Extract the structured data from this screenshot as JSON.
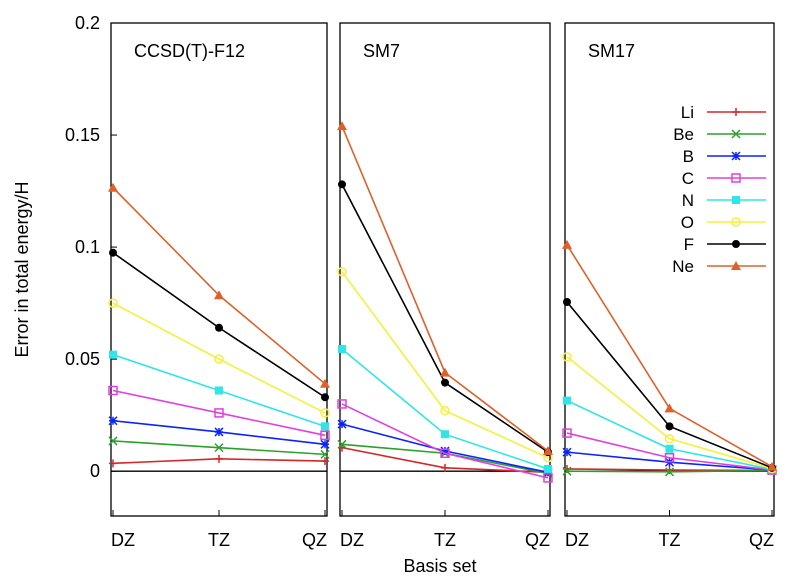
{
  "chart_data": {
    "type": "line",
    "ylabel": "Error in total energy/H",
    "xlabel": "Basis set",
    "ylim": [
      -0.02,
      0.2
    ],
    "yticks": [
      0,
      0.05,
      0.1,
      0.15,
      0.2
    ],
    "ytick_labels": [
      "0",
      "0.05",
      "0.1",
      "0.15",
      "0.2"
    ],
    "categories": [
      "DZ",
      "TZ",
      "QZ"
    ],
    "legend_position": "right, inside third panel",
    "zero_line": true,
    "series_styles": [
      {
        "name": "Li",
        "color": "#d62728",
        "marker": "plus"
      },
      {
        "name": "Be",
        "color": "#2ca02c",
        "marker": "cross"
      },
      {
        "name": "B",
        "color": "#0b24fb",
        "marker": "star"
      },
      {
        "name": "C",
        "color": "#e040e0",
        "marker": "open-square"
      },
      {
        "name": "N",
        "color": "#2ee6e6",
        "marker": "filled-square"
      },
      {
        "name": "O",
        "color": "#f5f03a",
        "marker": "open-circle"
      },
      {
        "name": "F",
        "color": "#000000",
        "marker": "filled-circle"
      },
      {
        "name": "Ne",
        "color": "#e0602a",
        "marker": "filled-triangle"
      }
    ],
    "panels": [
      {
        "title": "CCSD(T)-F12",
        "series": [
          {
            "name": "Li",
            "values": [
              0.0035,
              0.0055,
              0.0045
            ]
          },
          {
            "name": "Be",
            "values": [
              0.0135,
              0.0105,
              0.0075
            ]
          },
          {
            "name": "B",
            "values": [
              0.0225,
              0.0175,
              0.012
            ]
          },
          {
            "name": "C",
            "values": [
              0.036,
              0.026,
              0.016
            ]
          },
          {
            "name": "N",
            "values": [
              0.052,
              0.036,
              0.02
            ]
          },
          {
            "name": "O",
            "values": [
              0.075,
              0.05,
              0.026
            ]
          },
          {
            "name": "F",
            "values": [
              0.0975,
              0.064,
              0.033
            ]
          },
          {
            "name": "Ne",
            "values": [
              0.1265,
              0.0785,
              0.039
            ]
          }
        ]
      },
      {
        "title": "SM7",
        "series": [
          {
            "name": "Li",
            "values": [
              0.0105,
              0.0015,
              -0.0005
            ]
          },
          {
            "name": "Be",
            "values": [
              0.012,
              0.008,
              -0.001
            ]
          },
          {
            "name": "B",
            "values": [
              0.021,
              0.009,
              -0.0005
            ]
          },
          {
            "name": "C",
            "values": [
              0.03,
              0.008,
              -0.003
            ]
          },
          {
            "name": "N",
            "values": [
              0.0545,
              0.0165,
              0.001
            ]
          },
          {
            "name": "O",
            "values": [
              0.089,
              0.027,
              0.006
            ]
          },
          {
            "name": "F",
            "values": [
              0.128,
              0.0395,
              0.0085
            ]
          },
          {
            "name": "Ne",
            "values": [
              0.154,
              0.044,
              0.009
            ]
          }
        ]
      },
      {
        "title": "SM17",
        "series": [
          {
            "name": "Li",
            "values": [
              0.001,
              0.0005,
              0.0003
            ]
          },
          {
            "name": "Be",
            "values": [
              0.0,
              -0.0003,
              0.0003
            ]
          },
          {
            "name": "B",
            "values": [
              0.0085,
              0.004,
              0.0005
            ]
          },
          {
            "name": "C",
            "values": [
              0.017,
              0.006,
              0.0005
            ]
          },
          {
            "name": "N",
            "values": [
              0.0315,
              0.01,
              0.0008
            ]
          },
          {
            "name": "O",
            "values": [
              0.051,
              0.0145,
              0.0012
            ]
          },
          {
            "name": "F",
            "values": [
              0.0755,
              0.02,
              0.0015
            ]
          },
          {
            "name": "Ne",
            "values": [
              0.101,
              0.028,
              0.002
            ]
          }
        ]
      }
    ]
  }
}
